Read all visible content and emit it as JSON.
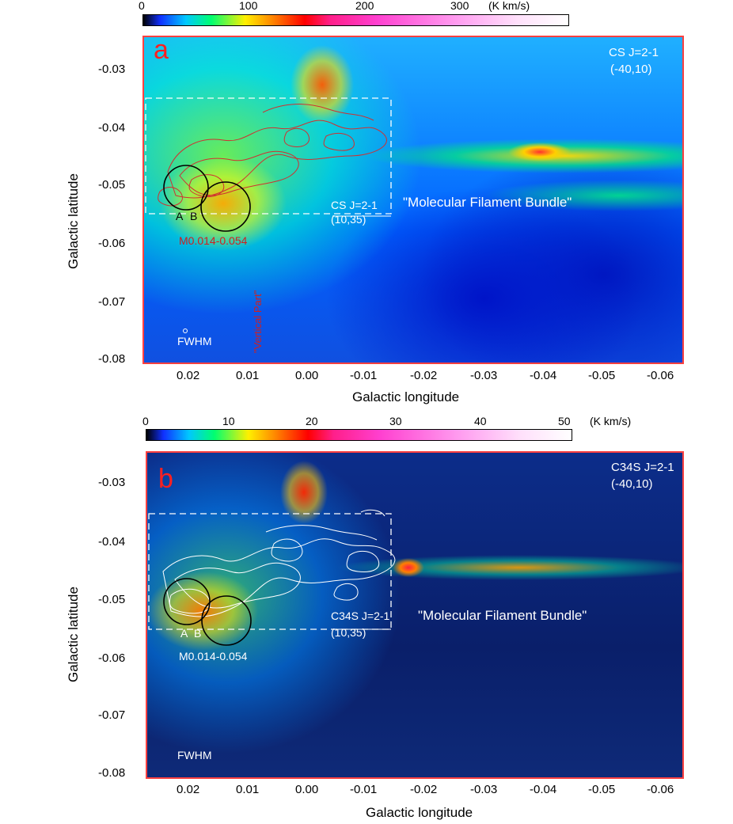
{
  "panel_a": {
    "letter": "a",
    "colorbar": {
      "ticks": [
        "0",
        "100",
        "200",
        "300"
      ],
      "unit": "(K km/s)"
    },
    "y_ticks": [
      "-0.03",
      "-0.04",
      "-0.05",
      "-0.06",
      "-0.07",
      "-0.08"
    ],
    "x_ticks": [
      "0.02",
      "0.01",
      "0.00",
      "-0.01",
      "-0.02",
      "-0.03",
      "-0.04",
      "-0.05",
      "-0.06"
    ],
    "xlabel": "Galactic longitude",
    "ylabel": "Galactic latitude",
    "line_label": "CS J=2-1",
    "vel_range": "(-40,10)",
    "contour_line": "CS J=2-1",
    "contour_vel": "(10,35)",
    "filament": "\"Molecular Filament Bundle\"",
    "source": "M0.014-0.054",
    "circle_a": "A",
    "circle_b": "B",
    "fwhm": "FWHM",
    "vertical": "\"Vertical Part\""
  },
  "panel_b": {
    "letter": "b",
    "colorbar": {
      "ticks": [
        "0",
        "10",
        "20",
        "30",
        "40",
        "50"
      ],
      "unit": "(K km/s)"
    },
    "y_ticks": [
      "-0.03",
      "-0.04",
      "-0.05",
      "-0.06",
      "-0.07",
      "-0.08"
    ],
    "x_ticks": [
      "0.02",
      "0.01",
      "0.00",
      "-0.01",
      "-0.02",
      "-0.03",
      "-0.04",
      "-0.05",
      "-0.06"
    ],
    "xlabel": "Galactic longitude",
    "ylabel": "Galactic latitude",
    "line_label": "C34S J=2-1",
    "vel_range": "(-40,10)",
    "contour_line": "C34S J=2-1",
    "contour_vel": "(10,35)",
    "filament": "\"Molecular Filament Bundle\"",
    "source": "M0.014-0.054",
    "circle_a": "A",
    "circle_b": "B",
    "fwhm": "FWHM"
  },
  "colors": {
    "frame": "#ff4040",
    "contour_a": "#d03030",
    "contour_b": "#ffffff"
  }
}
